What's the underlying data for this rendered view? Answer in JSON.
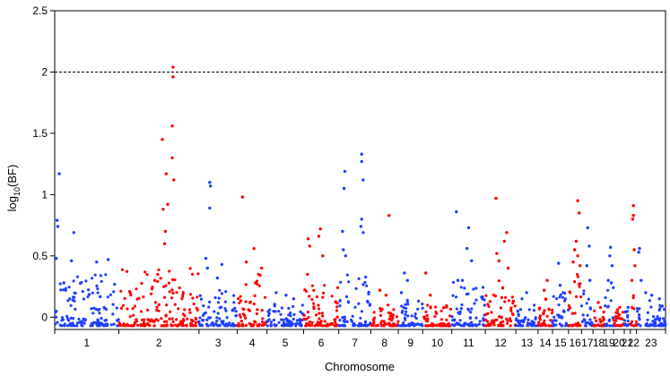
{
  "chart_data": {
    "type": "scatter",
    "title": "",
    "xlabel": "Chromosome",
    "ylabel_main": "log",
    "ylabel_sub": "10",
    "ylabel_rest": "(BF)",
    "ylim": [
      -0.1,
      2.5
    ],
    "yticks": [
      "0",
      "0.5",
      "1",
      "1.5",
      "2",
      "2.5"
    ],
    "ytick_values": [
      0,
      0.5,
      1,
      1.5,
      2,
      2.5
    ],
    "threshold": 2,
    "colors": {
      "odd": "#1f3fff",
      "even": "#ff0000",
      "threshold": "#000000"
    },
    "chromosomes": [
      {
        "label": "1",
        "start": 0,
        "end": 84,
        "peaks": [
          [
            6,
            1.17
          ],
          [
            3,
            0.79
          ],
          [
            4,
            0.74
          ],
          [
            2,
            0.48
          ],
          [
            25,
            0.69
          ],
          [
            22,
            0.46
          ],
          [
            70,
            0.47
          ],
          [
            55,
            0.45
          ],
          [
            12,
            0.28
          ]
        ],
        "max": 0.35
      },
      {
        "label": "2",
        "start": 84,
        "end": 189,
        "peaks": [
          [
            71,
            2.04
          ],
          [
            71,
            1.96
          ],
          [
            70,
            1.56
          ],
          [
            57,
            1.45
          ],
          [
            70,
            1.3
          ],
          [
            72,
            1.12
          ],
          [
            62,
            1.17
          ],
          [
            64,
            0.92
          ],
          [
            58,
            0.88
          ],
          [
            61,
            0.7
          ],
          [
            60,
            0.6
          ],
          [
            51,
            0.35
          ],
          [
            47,
            0.3
          ]
        ],
        "max": 0.4
      },
      {
        "label": "3",
        "start": 189,
        "end": 239,
        "peaks": [
          [
            14,
            1.1
          ],
          [
            15,
            1.07
          ],
          [
            14,
            0.89
          ],
          [
            9,
            0.48
          ],
          [
            11,
            0.4
          ],
          [
            30,
            0.43
          ],
          [
            24,
            0.32
          ]
        ],
        "max": 0.25
      },
      {
        "label": "4",
        "start": 239,
        "end": 278,
        "peaks": [
          [
            7,
            0.98
          ],
          [
            22,
            0.56
          ],
          [
            12,
            0.45
          ],
          [
            28,
            0.35
          ],
          [
            24,
            0.28
          ],
          [
            32,
            0.4
          ]
        ],
        "max": 0.4
      },
      {
        "label": "5",
        "start": 278,
        "end": 326,
        "peaks": [
          [
            12,
            0.2
          ],
          [
            25,
            0.18
          ],
          [
            35,
            0.15
          ]
        ],
        "max": 0.12
      },
      {
        "label": "6",
        "start": 326,
        "end": 372,
        "peaks": [
          [
            6,
            0.64
          ],
          [
            8,
            0.58
          ],
          [
            22,
            0.72
          ],
          [
            20,
            0.66
          ],
          [
            25,
            0.5
          ],
          [
            5,
            0.35
          ]
        ],
        "max": 0.3
      },
      {
        "label": "7",
        "start": 372,
        "end": 414,
        "peaks": [
          [
            8,
            1.19
          ],
          [
            7,
            1.05
          ],
          [
            5,
            0.7
          ],
          [
            30,
            1.33
          ],
          [
            30,
            1.27
          ],
          [
            32,
            1.12
          ],
          [
            29,
            0.74
          ],
          [
            32,
            0.69
          ],
          [
            30,
            0.8
          ],
          [
            9,
            0.5
          ],
          [
            6,
            0.55
          ]
        ],
        "max": 0.35
      },
      {
        "label": "8",
        "start": 414,
        "end": 450,
        "peaks": [
          [
            24,
            0.83
          ],
          [
            12,
            0.22
          ],
          [
            20,
            0.18
          ]
        ],
        "max": 0.12
      },
      {
        "label": "9",
        "start": 450,
        "end": 482,
        "peaks": [
          [
            8,
            0.36
          ],
          [
            12,
            0.3
          ],
          [
            4,
            0.2
          ]
        ],
        "max": 0.2
      },
      {
        "label": "10",
        "start": 482,
        "end": 520,
        "peaks": [
          [
            4,
            0.36
          ],
          [
            10,
            0.18
          ]
        ],
        "max": 0.1
      },
      {
        "label": "11",
        "start": 520,
        "end": 564,
        "peaks": [
          [
            6,
            0.86
          ],
          [
            22,
            0.73
          ],
          [
            20,
            0.56
          ],
          [
            26,
            0.46
          ],
          [
            8,
            0.3
          ],
          [
            14,
            0.3
          ]
        ],
        "max": 0.3
      },
      {
        "label": "12",
        "start": 564,
        "end": 604,
        "peaks": [
          [
            14,
            0.97
          ],
          [
            28,
            0.69
          ],
          [
            25,
            0.62
          ],
          [
            15,
            0.52
          ],
          [
            18,
            0.46
          ],
          [
            30,
            0.4
          ]
        ],
        "max": 0.3
      },
      {
        "label": "13",
        "start": 604,
        "end": 633,
        "peaks": [
          [
            14,
            0.2
          ],
          [
            8,
            0.15
          ]
        ],
        "max": 0.12
      },
      {
        "label": "14",
        "start": 633,
        "end": 652,
        "peaks": [
          [
            12,
            0.3
          ],
          [
            8,
            0.22
          ]
        ],
        "max": 0.15
      },
      {
        "label": "15",
        "start": 652,
        "end": 673,
        "peaks": [
          [
            8,
            0.44
          ],
          [
            10,
            0.26
          ],
          [
            14,
            0.2
          ]
        ],
        "max": 0.2
      },
      {
        "label": "16",
        "start": 673,
        "end": 690,
        "peaks": [
          [
            12,
            0.95
          ],
          [
            14,
            0.85
          ],
          [
            10,
            0.62
          ],
          [
            8,
            0.55
          ],
          [
            12,
            0.5
          ],
          [
            15,
            0.42
          ],
          [
            6,
            0.45
          ]
        ],
        "max": 0.35
      },
      {
        "label": "17",
        "start": 690,
        "end": 705,
        "peaks": [
          [
            8,
            0.73
          ],
          [
            10,
            0.58
          ],
          [
            7,
            0.42
          ],
          [
            11,
            0.3
          ]
        ],
        "max": 0.25
      },
      {
        "label": "18",
        "start": 705,
        "end": 720,
        "peaks": [
          [
            7,
            0.12
          ],
          [
            10,
            0.08
          ]
        ],
        "max": 0.06
      },
      {
        "label": "19",
        "start": 720,
        "end": 732,
        "peaks": [
          [
            8,
            0.57
          ],
          [
            7,
            0.5
          ],
          [
            10,
            0.42
          ],
          [
            5,
            0.3
          ],
          [
            9,
            0.28
          ]
        ],
        "max": 0.25
      },
      {
        "label": "20",
        "start": 732,
        "end": 746,
        "peaks": [
          [
            8,
            0.08
          ],
          [
            5,
            0.06
          ]
        ],
        "max": 0.05
      },
      {
        "label": "21",
        "start": 746,
        "end": 754,
        "peaks": [
          [
            5,
            0.08
          ]
        ],
        "max": 0.05
      },
      {
        "label": "22",
        "start": 754,
        "end": 762,
        "peaks": [
          [
            4,
            0.91
          ],
          [
            4,
            0.83
          ],
          [
            3,
            0.8
          ],
          [
            5,
            0.55
          ],
          [
            6,
            0.42
          ],
          [
            2,
            0.3
          ]
        ],
        "max": 0.2
      },
      {
        "label": "23",
        "start": 762,
        "end": 800,
        "peaks": [
          [
            4,
            0.56
          ],
          [
            3,
            0.53
          ],
          [
            6,
            0.3
          ],
          [
            12,
            0.2
          ],
          [
            20,
            0.18
          ],
          [
            30,
            0.15
          ]
        ],
        "max": 0.15
      }
    ]
  }
}
